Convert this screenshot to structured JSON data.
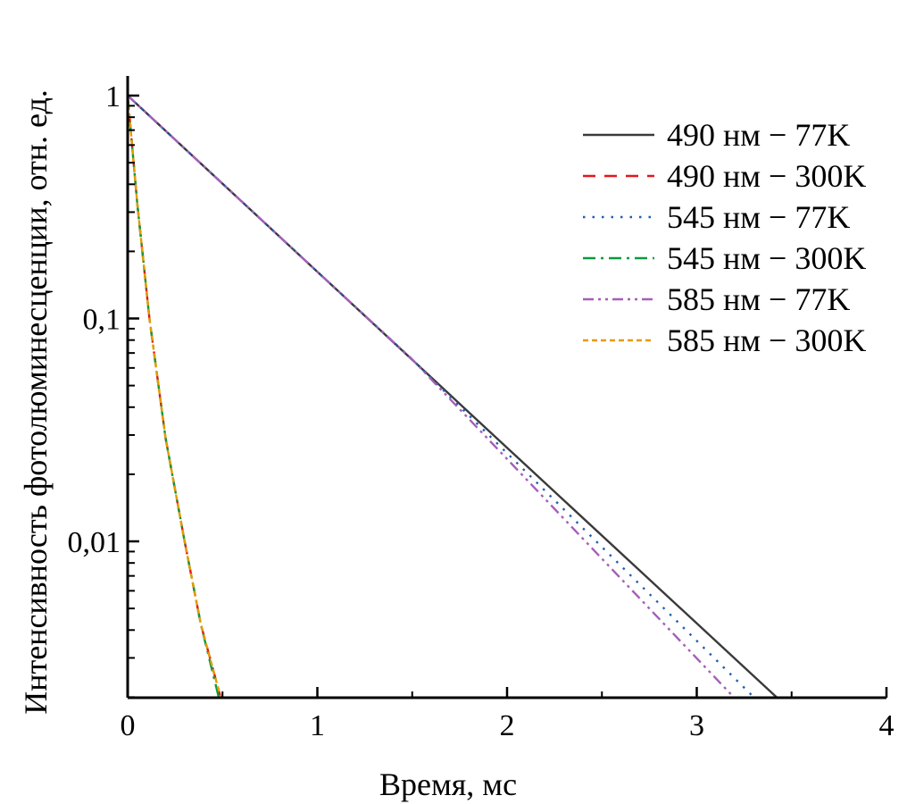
{
  "chart_data": {
    "type": "line",
    "title": "",
    "xlabel": "Время, мс",
    "ylabel": "Интенсивность фотолюминесценции, отн. ед.",
    "xlim": [
      0,
      4
    ],
    "ylim": [
      0.002,
      1
    ],
    "yscale": "log",
    "grid": false,
    "legend_position": "top-right",
    "x_ticks": [
      0,
      1,
      2,
      3,
      4
    ],
    "x_tick_labels": [
      "0",
      "1",
      "2",
      "3",
      "4"
    ],
    "y_ticks": [
      1,
      0.1,
      0.01
    ],
    "y_tick_labels": [
      "1",
      "0,1",
      "0,01"
    ],
    "series": [
      {
        "name": "490 нм − 77K",
        "color": "#3a3a3a",
        "dash": "solid",
        "x": [
          0,
          1,
          2,
          3.42
        ],
        "y": [
          1,
          0.162,
          0.0263,
          0.002
        ]
      },
      {
        "name": "490 нм − 300K",
        "color": "#e8141c",
        "dash": "dashed",
        "x": [
          0,
          0.05,
          0.115,
          0.2,
          0.3,
          0.386,
          0.49
        ],
        "y": [
          1,
          0.333,
          0.1,
          0.029,
          0.01,
          0.00424,
          0.002
        ]
      },
      {
        "name": "545 нм − 77K",
        "color": "#1f5fb4",
        "dash": "dotted",
        "x": [
          0,
          1,
          1.5,
          3.3
        ],
        "y": [
          1,
          0.162,
          0.0655,
          0.002
        ]
      },
      {
        "name": "545 нм − 300K",
        "color": "#0a9a3c",
        "dash": "dash-dot",
        "x": [
          0,
          0.05,
          0.115,
          0.2,
          0.3,
          0.386,
          0.48
        ],
        "y": [
          1,
          0.333,
          0.1,
          0.029,
          0.01,
          0.00424,
          0.002
        ]
      },
      {
        "name": "585 нм − 77K",
        "color": "#a55fb8",
        "dash": "dash-dot-dot",
        "x": [
          0,
          1,
          1.5,
          3.195
        ],
        "y": [
          1,
          0.162,
          0.0655,
          0.002
        ]
      },
      {
        "name": "585 нм − 300K",
        "color": "#e59b00",
        "dash": "short-dash",
        "x": [
          0,
          0.05,
          0.115,
          0.2,
          0.3,
          0.386,
          0.49
        ],
        "y": [
          1,
          0.333,
          0.1,
          0.029,
          0.01,
          0.00424,
          0.002
        ]
      }
    ]
  }
}
